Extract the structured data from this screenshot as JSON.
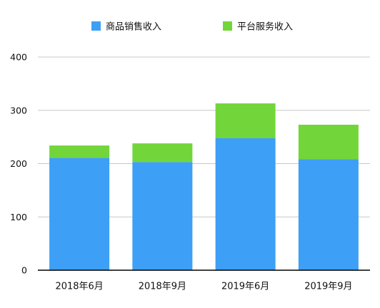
{
  "chart_data": {
    "type": "bar",
    "stacked": true,
    "categories": [
      "2018年6月",
      "2018年9月",
      "2019年6月",
      "2019年9月"
    ],
    "series": [
      {
        "name": "商品销售收入",
        "color": "#3d9ff5",
        "values": [
          211,
          203,
          248,
          208
        ]
      },
      {
        "name": "平台服务收入",
        "color": "#72d63a",
        "values": [
          23,
          35,
          65,
          65
        ]
      }
    ],
    "ylim": [
      0,
      400
    ],
    "yticks": [
      0,
      100,
      200,
      300,
      400
    ],
    "grid": true,
    "legend_position": "top-center",
    "gridline_color": "#c8c8c8",
    "axis_color": "#000000"
  }
}
